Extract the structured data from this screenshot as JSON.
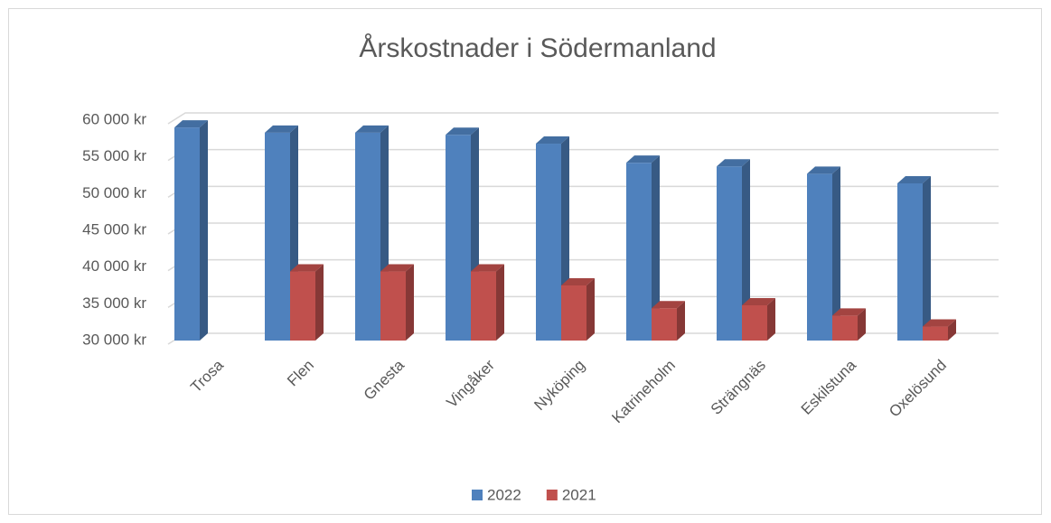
{
  "chart_data": {
    "type": "bar3d",
    "title": "Årskostnader i Södermanland",
    "categories": [
      "Trosa",
      "Flen",
      "Gnesta",
      "Vingåker",
      "Nyköping",
      "Katrineholm",
      "Strängnäs",
      "Eskilstuna",
      "Oxelösund"
    ],
    "series": [
      {
        "name": "2022",
        "color": "#4f81bd",
        "values": [
          59000,
          58300,
          58300,
          58000,
          56800,
          54200,
          53700,
          52700,
          51400
        ]
      },
      {
        "name": "2021",
        "color": "#c0504d",
        "values": [
          null,
          39400,
          39400,
          39400,
          37500,
          34400,
          34800,
          33400,
          31900
        ]
      }
    ],
    "ylim": [
      30000,
      60000
    ],
    "yticks": [
      {
        "value": 30000,
        "label": "30 000 kr"
      },
      {
        "value": 35000,
        "label": "35 000 kr"
      },
      {
        "value": 40000,
        "label": "40 000 kr"
      },
      {
        "value": 45000,
        "label": "45 000 kr"
      },
      {
        "value": 50000,
        "label": "50 000 kr"
      },
      {
        "value": 55000,
        "label": "55 000 kr"
      },
      {
        "value": 60000,
        "label": "60 000 kr"
      }
    ],
    "grid": true,
    "legend": "bottom"
  }
}
